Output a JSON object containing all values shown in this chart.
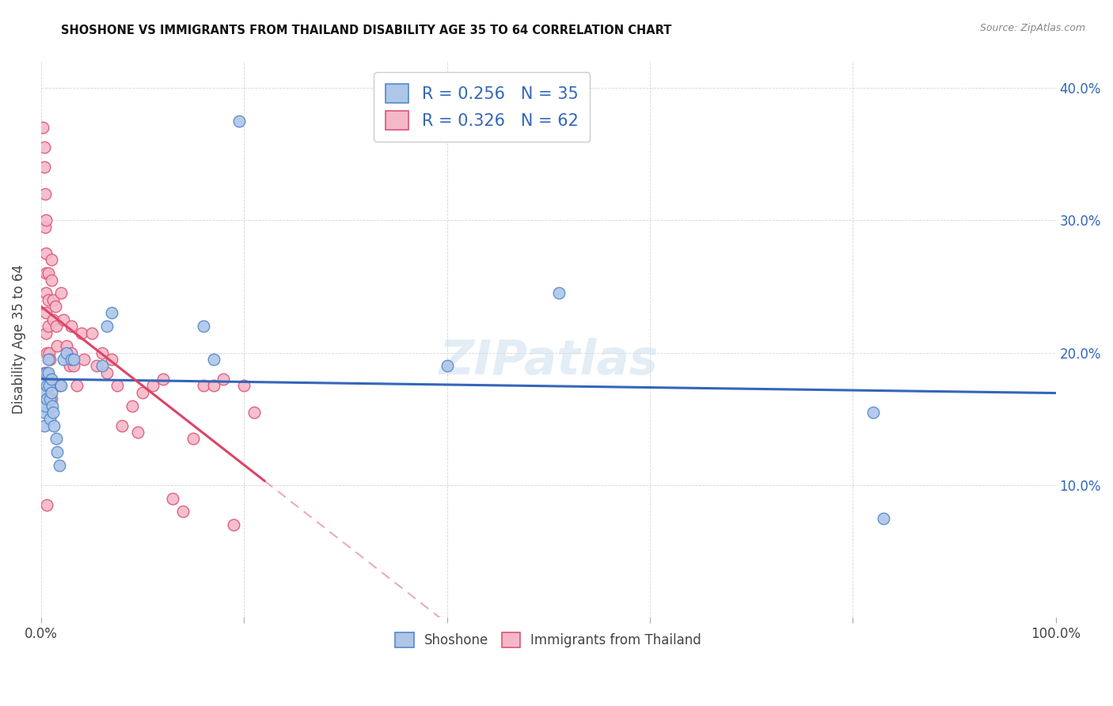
{
  "title": "SHOSHONE VS IMMIGRANTS FROM THAILAND DISABILITY AGE 35 TO 64 CORRELATION CHART",
  "source": "Source: ZipAtlas.com",
  "ylabel": "Disability Age 35 to 64",
  "xlim": [
    0,
    1.0
  ],
  "ylim": [
    0,
    0.42
  ],
  "R_shoshone": 0.256,
  "N_shoshone": 35,
  "R_thailand": 0.326,
  "N_thailand": 62,
  "shoshone_color": "#aec6e8",
  "thailand_color": "#f5b8c8",
  "shoshone_edge": "#5588cc",
  "thailand_edge": "#dd5577",
  "trend_shoshone_color": "#3366bb",
  "trend_thailand_color": "#dd4466",
  "watermark": "ZIPatlas",
  "shoshone_x": [
    0.003,
    0.003,
    0.004,
    0.004,
    0.005,
    0.006,
    0.006,
    0.007,
    0.007,
    0.008,
    0.009,
    0.009,
    0.01,
    0.01,
    0.011,
    0.012,
    0.013,
    0.015,
    0.016,
    0.018,
    0.02,
    0.022,
    0.025,
    0.03,
    0.032,
    0.06,
    0.065,
    0.07,
    0.16,
    0.17,
    0.195,
    0.4,
    0.51,
    0.82,
    0.83
  ],
  "shoshone_y": [
    0.155,
    0.145,
    0.17,
    0.16,
    0.185,
    0.175,
    0.165,
    0.195,
    0.185,
    0.175,
    0.165,
    0.15,
    0.18,
    0.17,
    0.16,
    0.155,
    0.145,
    0.135,
    0.125,
    0.115,
    0.175,
    0.195,
    0.2,
    0.195,
    0.195,
    0.19,
    0.22,
    0.23,
    0.22,
    0.195,
    0.375,
    0.19,
    0.245,
    0.155,
    0.075
  ],
  "thailand_x": [
    0.002,
    0.003,
    0.003,
    0.003,
    0.004,
    0.004,
    0.005,
    0.005,
    0.005,
    0.005,
    0.005,
    0.005,
    0.006,
    0.006,
    0.006,
    0.007,
    0.007,
    0.007,
    0.008,
    0.008,
    0.009,
    0.009,
    0.01,
    0.01,
    0.01,
    0.012,
    0.012,
    0.014,
    0.015,
    0.016,
    0.018,
    0.02,
    0.022,
    0.025,
    0.028,
    0.03,
    0.03,
    0.032,
    0.035,
    0.04,
    0.042,
    0.05,
    0.055,
    0.06,
    0.065,
    0.07,
    0.075,
    0.08,
    0.09,
    0.095,
    0.1,
    0.11,
    0.12,
    0.13,
    0.14,
    0.15,
    0.16,
    0.17,
    0.18,
    0.19,
    0.2,
    0.21
  ],
  "thailand_y": [
    0.37,
    0.355,
    0.34,
    0.185,
    0.32,
    0.295,
    0.3,
    0.275,
    0.26,
    0.245,
    0.23,
    0.215,
    0.2,
    0.185,
    0.085,
    0.26,
    0.24,
    0.22,
    0.2,
    0.18,
    0.195,
    0.175,
    0.27,
    0.255,
    0.165,
    0.24,
    0.225,
    0.235,
    0.22,
    0.205,
    0.175,
    0.245,
    0.225,
    0.205,
    0.19,
    0.22,
    0.2,
    0.19,
    0.175,
    0.215,
    0.195,
    0.215,
    0.19,
    0.2,
    0.185,
    0.195,
    0.175,
    0.145,
    0.16,
    0.14,
    0.17,
    0.175,
    0.18,
    0.09,
    0.08,
    0.135,
    0.175,
    0.175,
    0.18,
    0.07,
    0.175,
    0.155
  ]
}
